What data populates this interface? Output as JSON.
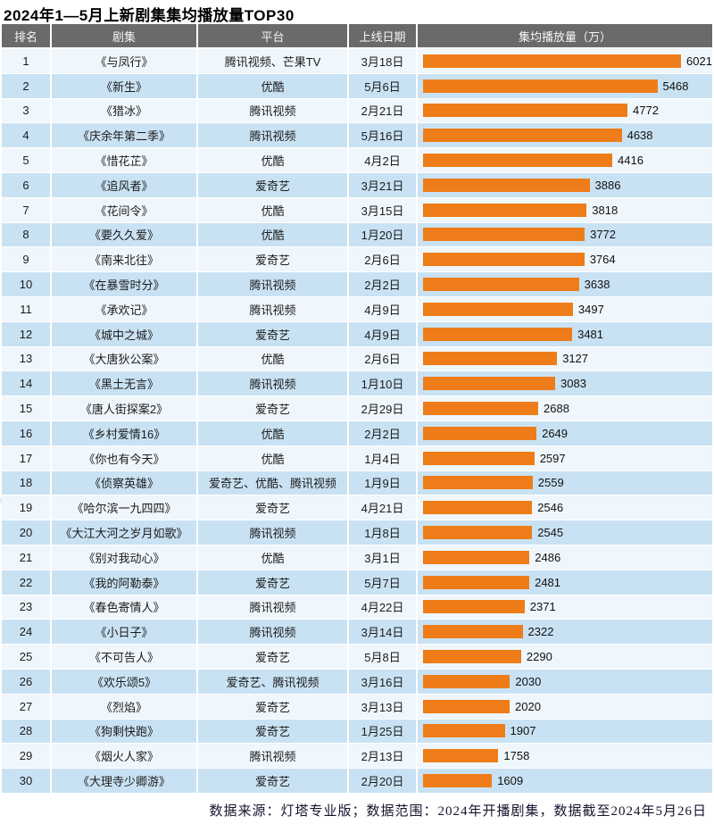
{
  "title": "2024年1—5月上新剧集集均播放量TOP30",
  "header": {
    "rank": "排名",
    "series": "剧集",
    "platform": "平台",
    "date": "上线日期",
    "views": "集均播放量（万）"
  },
  "footer": {
    "text": "数据来源：灯塔专业版；数据范围：2024年开播剧集，数据截至2024年5月26日"
  },
  "colors": {
    "bar": "#ee7d19",
    "header_bg": "#6a6a6a",
    "row_odd": "#eff6fc",
    "row_even": "#c9e2f3"
  },
  "chart_data": {
    "type": "bar",
    "orientation": "horizontal",
    "title": "2024年1—5月上新剧集集均播放量TOP30",
    "value_label": "集均播放量（万）",
    "value_range": [
      0,
      6021
    ],
    "legend": false,
    "grid": false,
    "rows": [
      {
        "rank": 1,
        "series": "《与凤行》",
        "platform": "腾讯视频、芒果TV",
        "date": "3月18日",
        "value": 6021
      },
      {
        "rank": 2,
        "series": "《新生》",
        "platform": "优酷",
        "date": "5月6日",
        "value": 5468
      },
      {
        "rank": 3,
        "series": "《猎冰》",
        "platform": "腾讯视频",
        "date": "2月21日",
        "value": 4772
      },
      {
        "rank": 4,
        "series": "《庆余年第二季》",
        "platform": "腾讯视频",
        "date": "5月16日",
        "value": 4638
      },
      {
        "rank": 5,
        "series": "《惜花芷》",
        "platform": "优酷",
        "date": "4月2日",
        "value": 4416
      },
      {
        "rank": 6,
        "series": "《追风者》",
        "platform": "爱奇艺",
        "date": "3月21日",
        "value": 3886
      },
      {
        "rank": 7,
        "series": "《花间令》",
        "platform": "优酷",
        "date": "3月15日",
        "value": 3818
      },
      {
        "rank": 8,
        "series": "《要久久爱》",
        "platform": "优酷",
        "date": "1月20日",
        "value": 3772
      },
      {
        "rank": 9,
        "series": "《南来北往》",
        "platform": "爱奇艺",
        "date": "2月6日",
        "value": 3764
      },
      {
        "rank": 10,
        "series": "《在暴雪时分》",
        "platform": "腾讯视频",
        "date": "2月2日",
        "value": 3638
      },
      {
        "rank": 11,
        "series": "《承欢记》",
        "platform": "腾讯视频",
        "date": "4月9日",
        "value": 3497
      },
      {
        "rank": 12,
        "series": "《城中之城》",
        "platform": "爱奇艺",
        "date": "4月9日",
        "value": 3481
      },
      {
        "rank": 13,
        "series": "《大唐狄公案》",
        "platform": "优酷",
        "date": "2月6日",
        "value": 3127
      },
      {
        "rank": 14,
        "series": "《黑土无言》",
        "platform": "腾讯视频",
        "date": "1月10日",
        "value": 3083
      },
      {
        "rank": 15,
        "series": "《唐人街探案2》",
        "platform": "爱奇艺",
        "date": "2月29日",
        "value": 2688
      },
      {
        "rank": 16,
        "series": "《乡村爱情16》",
        "platform": "优酷",
        "date": "2月2日",
        "value": 2649
      },
      {
        "rank": 17,
        "series": "《你也有今天》",
        "platform": "优酷",
        "date": "1月4日",
        "value": 2597
      },
      {
        "rank": 18,
        "series": "《侦察英雄》",
        "platform": "爱奇艺、优酷、腾讯视频",
        "date": "1月9日",
        "value": 2559
      },
      {
        "rank": 19,
        "series": "《哈尔滨一九四四》",
        "platform": "爱奇艺",
        "date": "4月21日",
        "value": 2546
      },
      {
        "rank": 20,
        "series": "《大江大河之岁月如歌》",
        "platform": "腾讯视频",
        "date": "1月8日",
        "value": 2545
      },
      {
        "rank": 21,
        "series": "《别对我动心》",
        "platform": "优酷",
        "date": "3月1日",
        "value": 2486
      },
      {
        "rank": 22,
        "series": "《我的阿勒泰》",
        "platform": "爱奇艺",
        "date": "5月7日",
        "value": 2481
      },
      {
        "rank": 23,
        "series": "《春色寄情人》",
        "platform": "腾讯视频",
        "date": "4月22日",
        "value": 2371
      },
      {
        "rank": 24,
        "series": "《小日子》",
        "platform": "腾讯视频",
        "date": "3月14日",
        "value": 2322
      },
      {
        "rank": 25,
        "series": "《不可告人》",
        "platform": "爱奇艺",
        "date": "5月8日",
        "value": 2290
      },
      {
        "rank": 26,
        "series": "《欢乐颂5》",
        "platform": "爱奇艺、腾讯视频",
        "date": "3月16日",
        "value": 2030
      },
      {
        "rank": 27,
        "series": "《烈焰》",
        "platform": "爱奇艺",
        "date": "3月13日",
        "value": 2020
      },
      {
        "rank": 28,
        "series": "《狗剩快跑》",
        "platform": "爱奇艺",
        "date": "1月25日",
        "value": 1907
      },
      {
        "rank": 29,
        "series": "《烟火人家》",
        "platform": "腾讯视频",
        "date": "2月13日",
        "value": 1758
      },
      {
        "rank": 30,
        "series": "《大理寺少卿游》",
        "platform": "爱奇艺",
        "date": "2月20日",
        "value": 1609
      }
    ]
  }
}
